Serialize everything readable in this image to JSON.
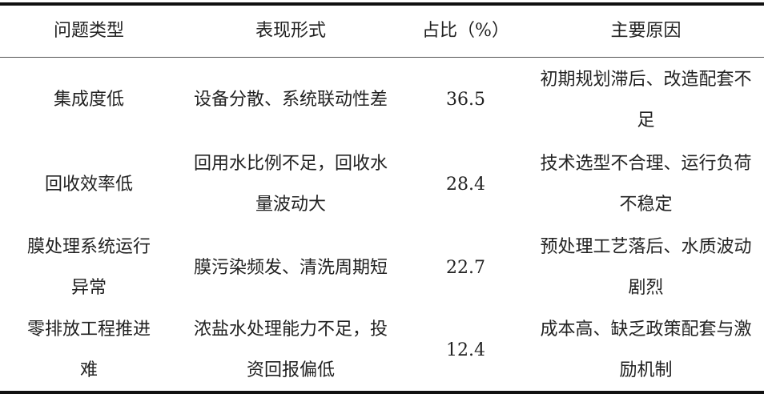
{
  "table": {
    "headers": [
      "问题类型",
      "表现形式",
      "占比（%）",
      "主要原因"
    ],
    "rows": [
      {
        "type": "集成度低",
        "form": "设备分散、系统联动性差",
        "share": "36.5",
        "cause": "初期规划滞后、改造配套不足"
      },
      {
        "type": "回收效率低",
        "form": "回用水比例不足，回收水量波动大",
        "share": "28.4",
        "cause": "技术选型不合理、运行负荷不稳定"
      },
      {
        "type": "膜处理系统运行异常",
        "form": "膜污染频发、清洗周期短",
        "share": "22.7",
        "cause": "预处理工艺落后、水质波动剧烈"
      },
      {
        "type": "零排放工程推进难",
        "form": "浓盐水处理能力不足，投资回报偏低",
        "share": "12.4",
        "cause": "成本高、缺乏政策配套与激励机制"
      }
    ]
  }
}
